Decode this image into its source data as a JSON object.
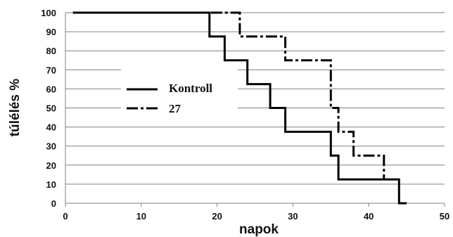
{
  "chart_data": {
    "type": "line",
    "step": true,
    "xlabel": "napok",
    "ylabel": "túlélés %",
    "xlim": [
      0,
      50
    ],
    "ylim": [
      0,
      100
    ],
    "xticks": [
      0,
      10,
      20,
      30,
      40,
      50
    ],
    "yticks": [
      0,
      10,
      20,
      30,
      40,
      50,
      60,
      70,
      80,
      90,
      100
    ],
    "grid": {
      "horizontal": true,
      "vertical": false
    },
    "legend_placement": "center-left",
    "series": [
      {
        "name": "Kontroll",
        "style": "solid",
        "color": "#000000",
        "points": [
          [
            1,
            100
          ],
          [
            19,
            100
          ],
          [
            19,
            87.5
          ],
          [
            21,
            87.5
          ],
          [
            21,
            75
          ],
          [
            24,
            75
          ],
          [
            24,
            62.5
          ],
          [
            27,
            62.5
          ],
          [
            27,
            50
          ],
          [
            29,
            50
          ],
          [
            29,
            37.5
          ],
          [
            35,
            37.5
          ],
          [
            35,
            25
          ],
          [
            36,
            25
          ],
          [
            36,
            12.5
          ],
          [
            44,
            12.5
          ],
          [
            44,
            0
          ],
          [
            45,
            0
          ]
        ]
      },
      {
        "name": "27",
        "style": "dash-dot",
        "color": "#000000",
        "points": [
          [
            1,
            100
          ],
          [
            23,
            100
          ],
          [
            23,
            87.5
          ],
          [
            29,
            87.5
          ],
          [
            29,
            75
          ],
          [
            35,
            75
          ],
          [
            35,
            50
          ],
          [
            36,
            50
          ],
          [
            36,
            37.5
          ],
          [
            38,
            37.5
          ],
          [
            38,
            25
          ],
          [
            42,
            25
          ],
          [
            42,
            12.5
          ]
        ]
      }
    ]
  }
}
